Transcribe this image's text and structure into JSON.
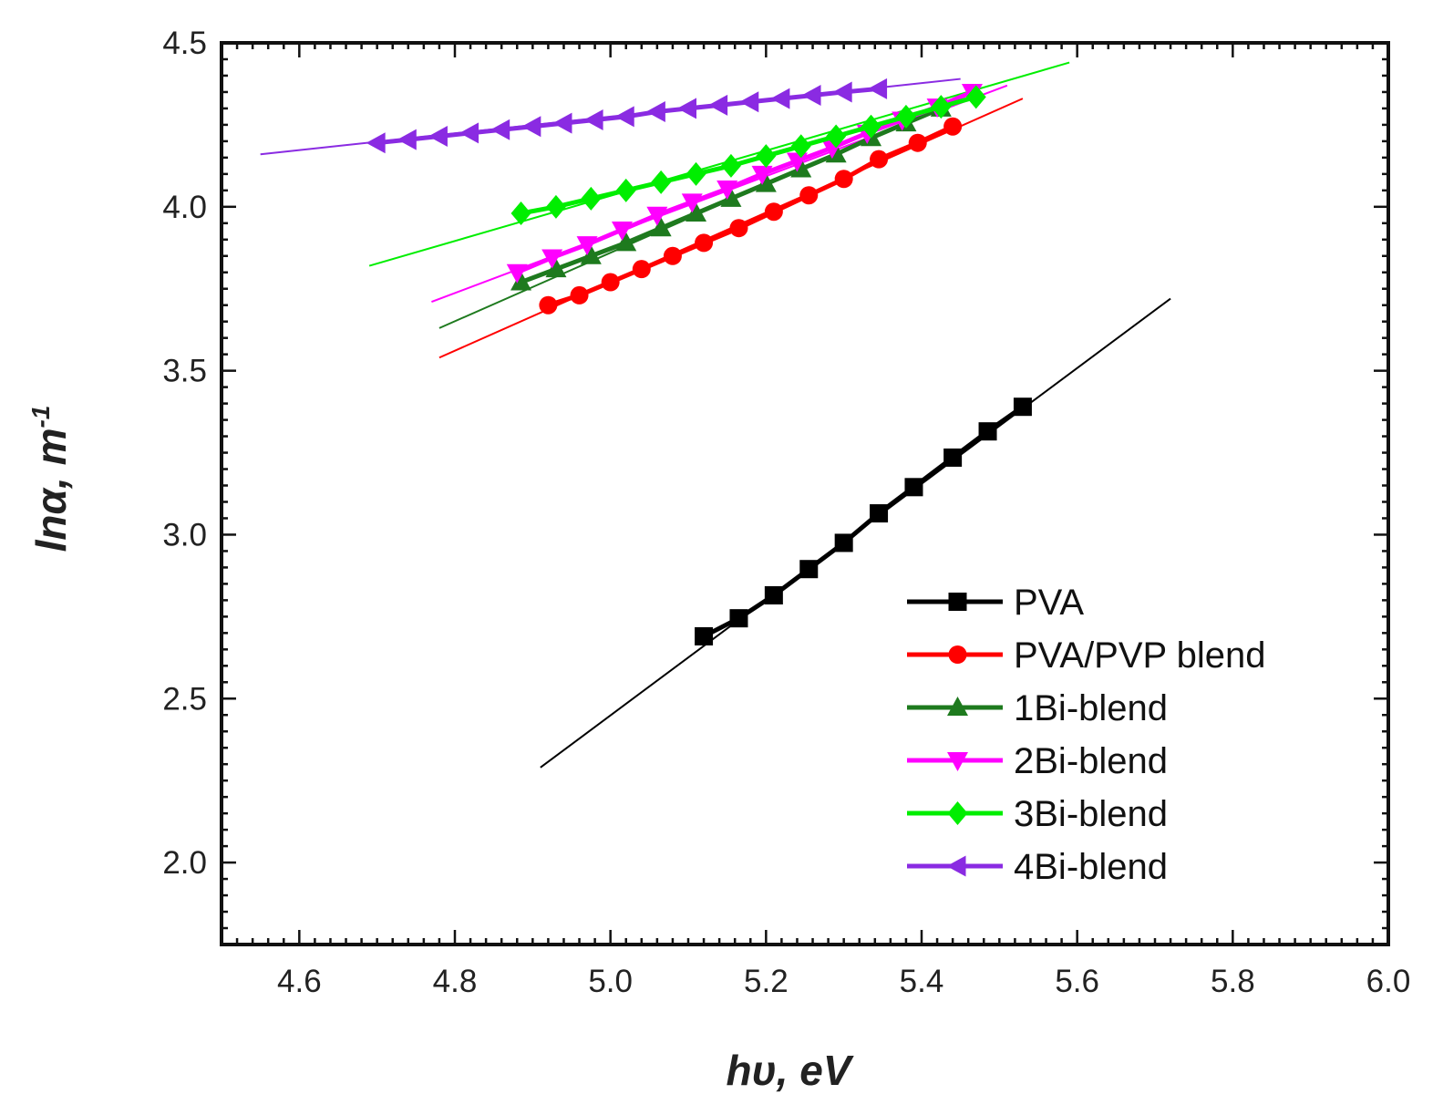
{
  "chart_data": {
    "type": "line",
    "title": "",
    "xlabel": "hυ, eV",
    "ylabel": "lnα, m",
    "ylabel_superscript": "-1",
    "xlim": [
      4.5,
      6.0
    ],
    "ylim": [
      1.75,
      4.5
    ],
    "xticks": [
      "4.6",
      "4.8",
      "5.0",
      "5.2",
      "5.4",
      "5.6",
      "5.8",
      "6.0"
    ],
    "yticks": [
      "2.0",
      "2.5",
      "3.0",
      "3.5",
      "4.0",
      "4.5"
    ],
    "legend_position": "bottom-right",
    "series": [
      {
        "name": "PVA",
        "color": "#000000",
        "marker": "square",
        "x": [
          5.12,
          5.165,
          5.21,
          5.255,
          5.3,
          5.345,
          5.39,
          5.44,
          5.485,
          5.53
        ],
        "y": [
          2.69,
          2.745,
          2.815,
          2.895,
          2.975,
          3.065,
          3.145,
          3.235,
          3.315,
          3.39
        ],
        "fit": {
          "x": [
            4.91,
            5.72
          ],
          "y": [
            2.29,
            3.72
          ]
        }
      },
      {
        "name": "PVA/PVP blend",
        "color": "#ff0000",
        "marker": "circle",
        "x": [
          4.92,
          4.96,
          5.0,
          5.04,
          5.08,
          5.12,
          5.165,
          5.21,
          5.255,
          5.3,
          5.345,
          5.395,
          5.44
        ],
        "y": [
          3.7,
          3.73,
          3.77,
          3.81,
          3.85,
          3.89,
          3.935,
          3.985,
          4.035,
          4.085,
          4.145,
          4.195,
          4.245
        ],
        "fit": {
          "x": [
            4.78,
            5.53
          ],
          "y": [
            3.54,
            4.33
          ]
        }
      },
      {
        "name": "1Bi-blend",
        "color": "#1e7a1e",
        "marker": "triangle-up",
        "x": [
          4.885,
          4.93,
          4.975,
          5.02,
          5.065,
          5.11,
          5.155,
          5.2,
          5.245,
          5.29,
          5.335,
          5.38,
          5.425
        ],
        "y": [
          3.77,
          3.81,
          3.85,
          3.89,
          3.935,
          3.98,
          4.025,
          4.07,
          4.115,
          4.16,
          4.21,
          4.255,
          4.3
        ],
        "fit": {
          "x": [
            4.78,
            5.45
          ],
          "y": [
            3.63,
            4.33
          ]
        }
      },
      {
        "name": "2Bi-blend",
        "color": "#ff00ff",
        "marker": "triangle-down",
        "x": [
          4.88,
          4.925,
          4.97,
          5.015,
          5.06,
          5.105,
          5.15,
          5.195,
          5.24,
          5.285,
          5.33,
          5.375,
          5.42,
          5.465
        ],
        "y": [
          3.8,
          3.845,
          3.885,
          3.93,
          3.975,
          4.015,
          4.055,
          4.1,
          4.14,
          4.18,
          4.225,
          4.265,
          4.305,
          4.35
        ],
        "fit": {
          "x": [
            4.77,
            5.51
          ],
          "y": [
            3.71,
            4.37
          ]
        }
      },
      {
        "name": "3Bi-blend",
        "color": "#00ee00",
        "marker": "diamond",
        "x": [
          4.885,
          4.93,
          4.975,
          5.02,
          5.065,
          5.11,
          5.155,
          5.2,
          5.245,
          5.29,
          5.335,
          5.38,
          5.425,
          5.47
        ],
        "y": [
          3.98,
          4.0,
          4.025,
          4.05,
          4.075,
          4.1,
          4.125,
          4.155,
          4.185,
          4.215,
          4.245,
          4.275,
          4.305,
          4.335
        ],
        "fit": {
          "x": [
            4.69,
            5.59
          ],
          "y": [
            3.82,
            4.44
          ]
        }
      },
      {
        "name": "4Bi-blend",
        "color": "#8a2be2",
        "marker": "triangle-left",
        "x": [
          4.7,
          4.74,
          4.78,
          4.82,
          4.86,
          4.9,
          4.94,
          4.98,
          5.02,
          5.06,
          5.1,
          5.14,
          5.18,
          5.22,
          5.26,
          5.3,
          5.345
        ],
        "y": [
          4.195,
          4.205,
          4.215,
          4.225,
          4.235,
          4.245,
          4.255,
          4.265,
          4.275,
          4.29,
          4.3,
          4.31,
          4.32,
          4.33,
          4.34,
          4.35,
          4.36
        ],
        "fit": {
          "x": [
            4.55,
            5.45
          ],
          "y": [
            4.16,
            4.39
          ]
        }
      }
    ]
  }
}
